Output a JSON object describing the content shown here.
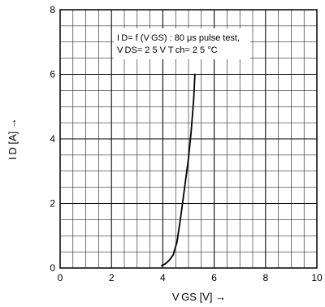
{
  "chart_data": {
    "type": "line",
    "title": "",
    "xlabel": "V GS [V]  →",
    "ylabel": "I D [A]  →",
    "xlim": [
      0,
      10
    ],
    "ylim": [
      0,
      8
    ],
    "grid": true,
    "x_ticks": [
      "0",
      "2",
      "4",
      "6",
      "8",
      "10"
    ],
    "y_ticks": [
      "0",
      "2",
      "4",
      "6",
      "8"
    ],
    "annotation": {
      "line1": "I D= f (V GS) : 80 μs pulse test,",
      "line2": "V DS= 2 5 V    T ch= 2 5 °C"
    },
    "series": [
      {
        "color": "#000000",
        "points": [
          [
            3.95,
            0.07
          ],
          [
            4.1,
            0.13
          ],
          [
            4.25,
            0.24
          ],
          [
            4.4,
            0.4
          ],
          [
            4.55,
            0.8
          ],
          [
            4.7,
            1.6
          ],
          [
            4.85,
            2.5
          ],
          [
            5.0,
            3.4
          ],
          [
            5.1,
            4.2
          ],
          [
            5.2,
            5.2
          ],
          [
            5.25,
            6.0
          ]
        ]
      }
    ]
  }
}
